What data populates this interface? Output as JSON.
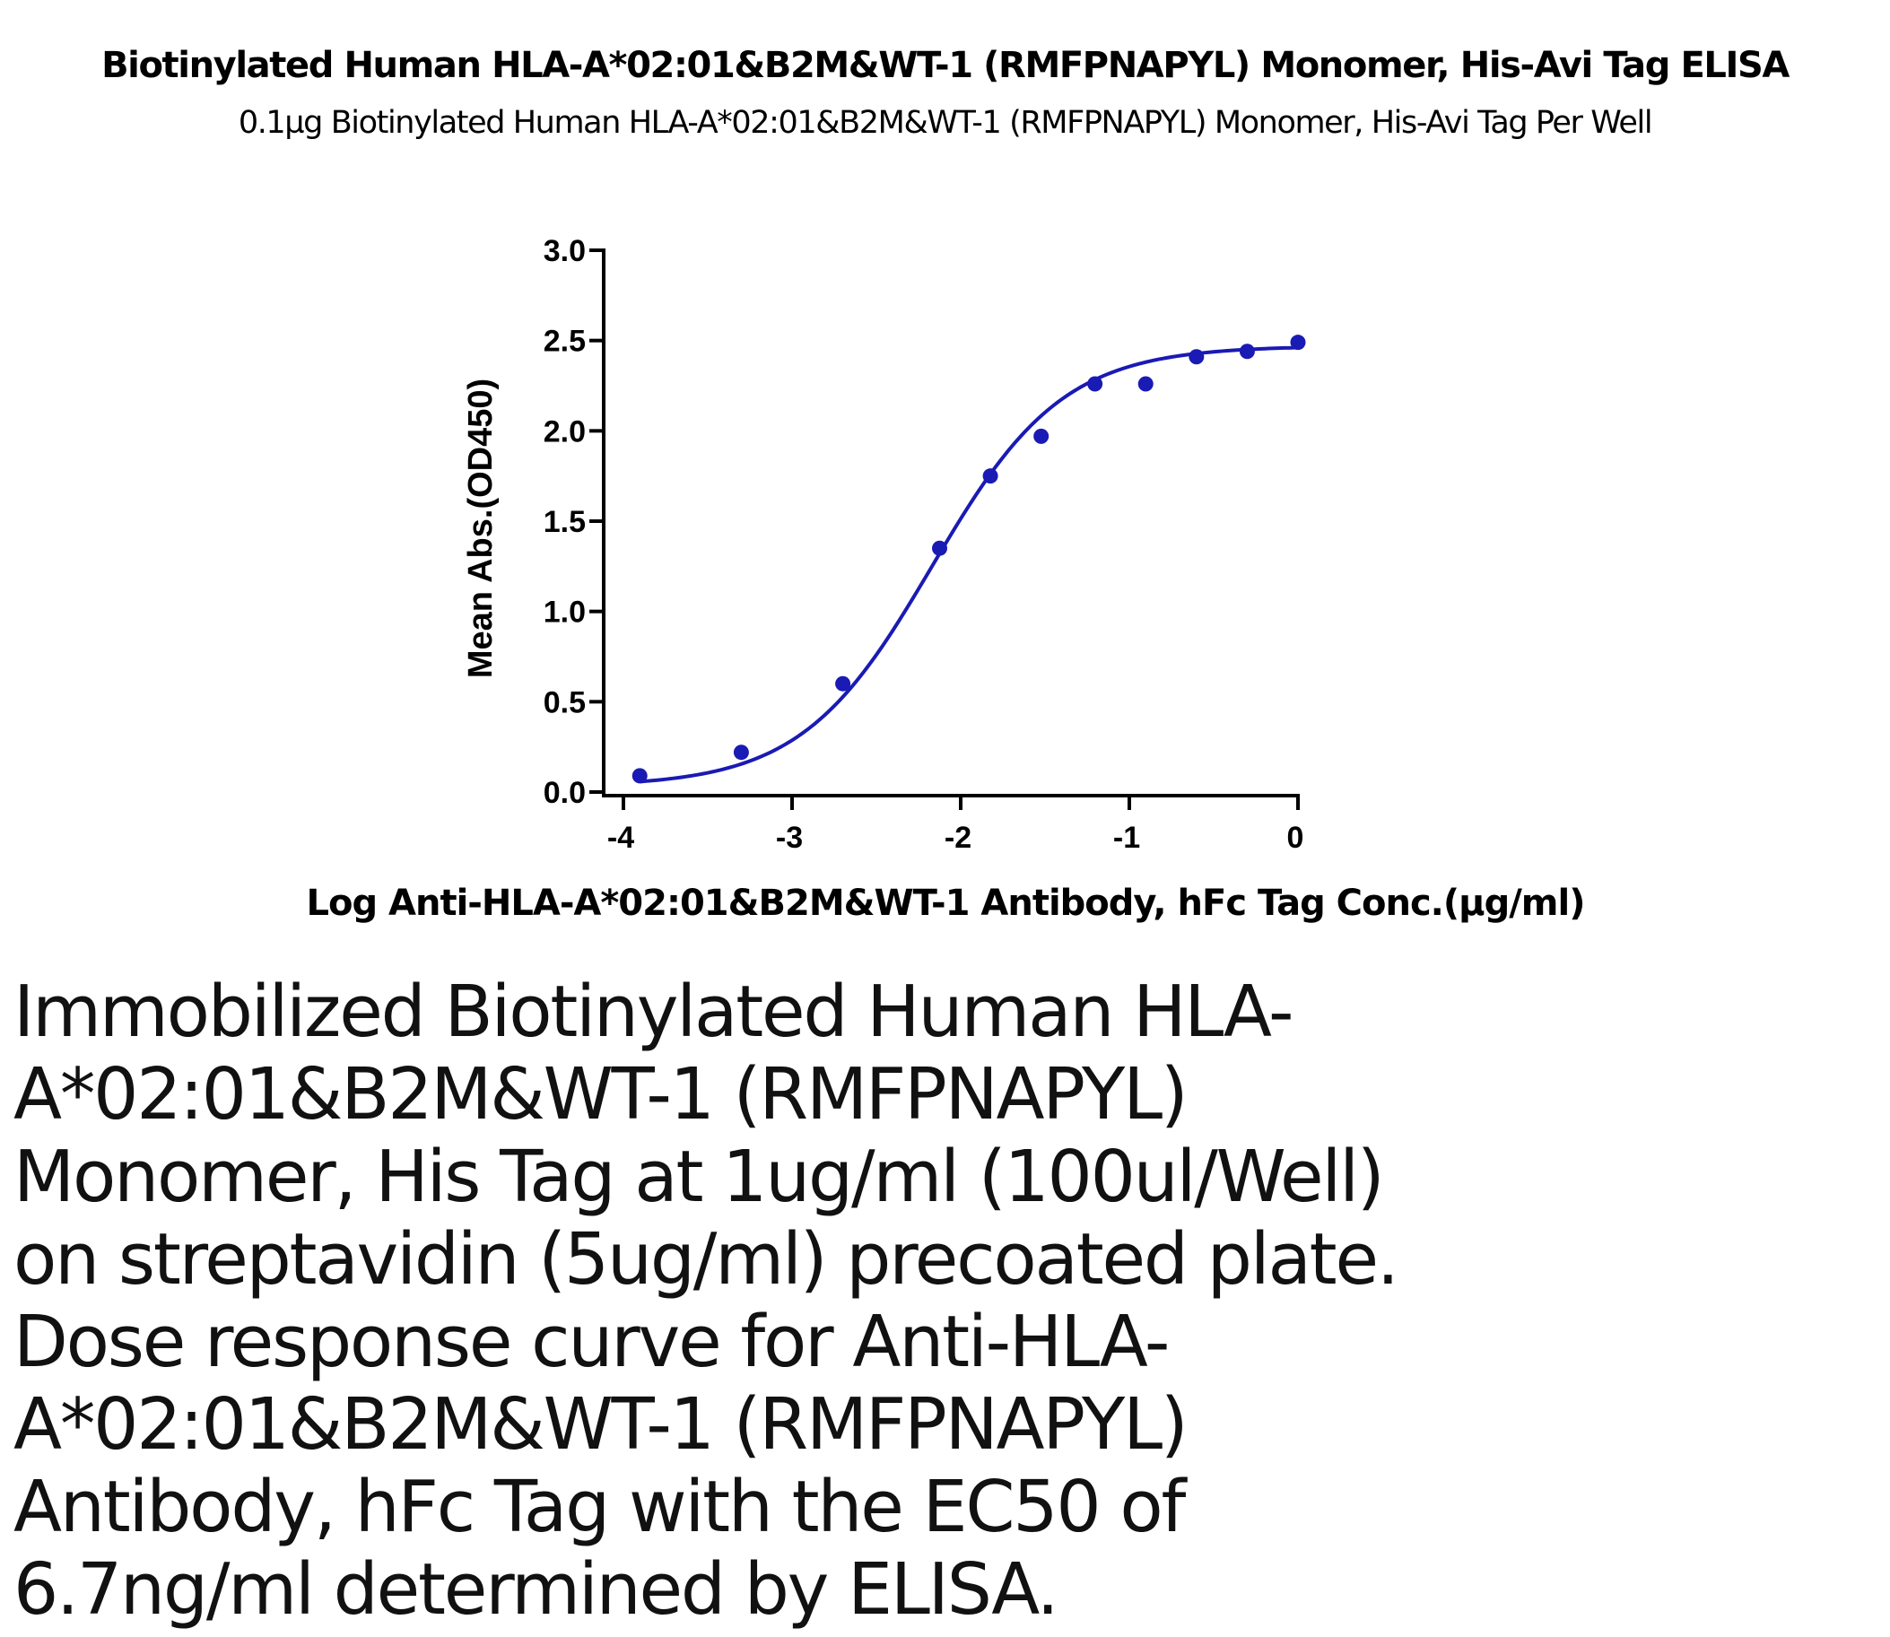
{
  "chart_data": {
    "type": "scatter",
    "title": "Biotinylated Human HLA-A*02:01&B2M&WT-1 (RMFPNAPYL) Monomer, His-Avi Tag ELISA",
    "subtitle": "0.1µg Biotinylated Human HLA-A*02:01&B2M&WT-1 (RMFPNAPYL) Monomer, His-Avi Tag Per Well",
    "xlabel": "Log Anti-HLA-A*02:01&B2M&WT-1 Antibody, hFc Tag Conc.(µg/ml)",
    "ylabel": "Mean Abs.(OD450)",
    "xlim": [
      -4.1,
      0.05
    ],
    "ylim": [
      0,
      3
    ],
    "xticks": [
      -4,
      -3,
      -2,
      -1,
      0
    ],
    "xtick_labels": [
      "-4",
      "-3",
      "-2",
      "-1",
      "0"
    ],
    "yticks": [
      0,
      0.5,
      1,
      1.5,
      2,
      2.5,
      3
    ],
    "ytick_labels": [
      "0.0",
      "0.5",
      "1.0",
      "1.5",
      "2.0",
      "2.5",
      "3.0"
    ],
    "grid": false,
    "legend": "none",
    "series": [
      {
        "color": "#1a1ab4",
        "x": [
          -3.903,
          -3.301,
          -2.699,
          -2.125,
          -1.824,
          -1.523,
          -1.204,
          -0.903,
          -0.602,
          -0.301,
          0.0
        ],
        "y": [
          0.09,
          0.22,
          0.6,
          1.35,
          1.75,
          1.97,
          2.26,
          2.26,
          2.41,
          2.44,
          2.49
        ]
      }
    ],
    "fit_curve": {
      "model": "4PL",
      "bottom": 0.03,
      "top": 2.47,
      "log_ec50": -2.17,
      "hill_slope": 1.12
    }
  },
  "description": "Immobilized Biotinylated Human HLA-A*02:01&B2M&WT-1 (RMFPNAPYL) Monomer, His Tag at 1ug/ml (100ul/Well) on streptavidin (5ug/ml) precoated plate. Dose response curve for Anti-HLA-A*02:01&B2M&WT-1 (RMFPNAPYL) Antibody, hFc Tag with the EC50 of 6.7ng/ml determined by ELISA."
}
